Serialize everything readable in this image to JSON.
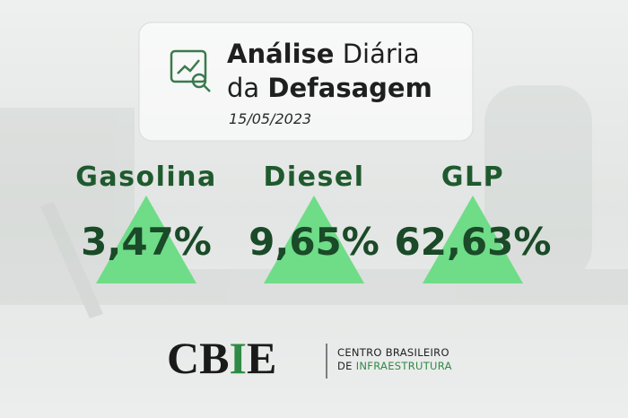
{
  "header": {
    "title_line1": [
      "Análise",
      "Diária"
    ],
    "title_line2": [
      "da",
      "Defasagem"
    ],
    "date": "15/05/2023"
  },
  "items": [
    {
      "name": "Gasolina",
      "value": "3,47%"
    },
    {
      "name": "Diesel",
      "value": "9,65%"
    },
    {
      "name": "GLP",
      "value": "62,63%"
    }
  ],
  "logo": {
    "mark": [
      "C",
      "B",
      "I",
      "E"
    ],
    "line1": "CENTRO BRASILEIRO",
    "line2": [
      "DE",
      "INFRAESTRUTURA"
    ]
  }
}
